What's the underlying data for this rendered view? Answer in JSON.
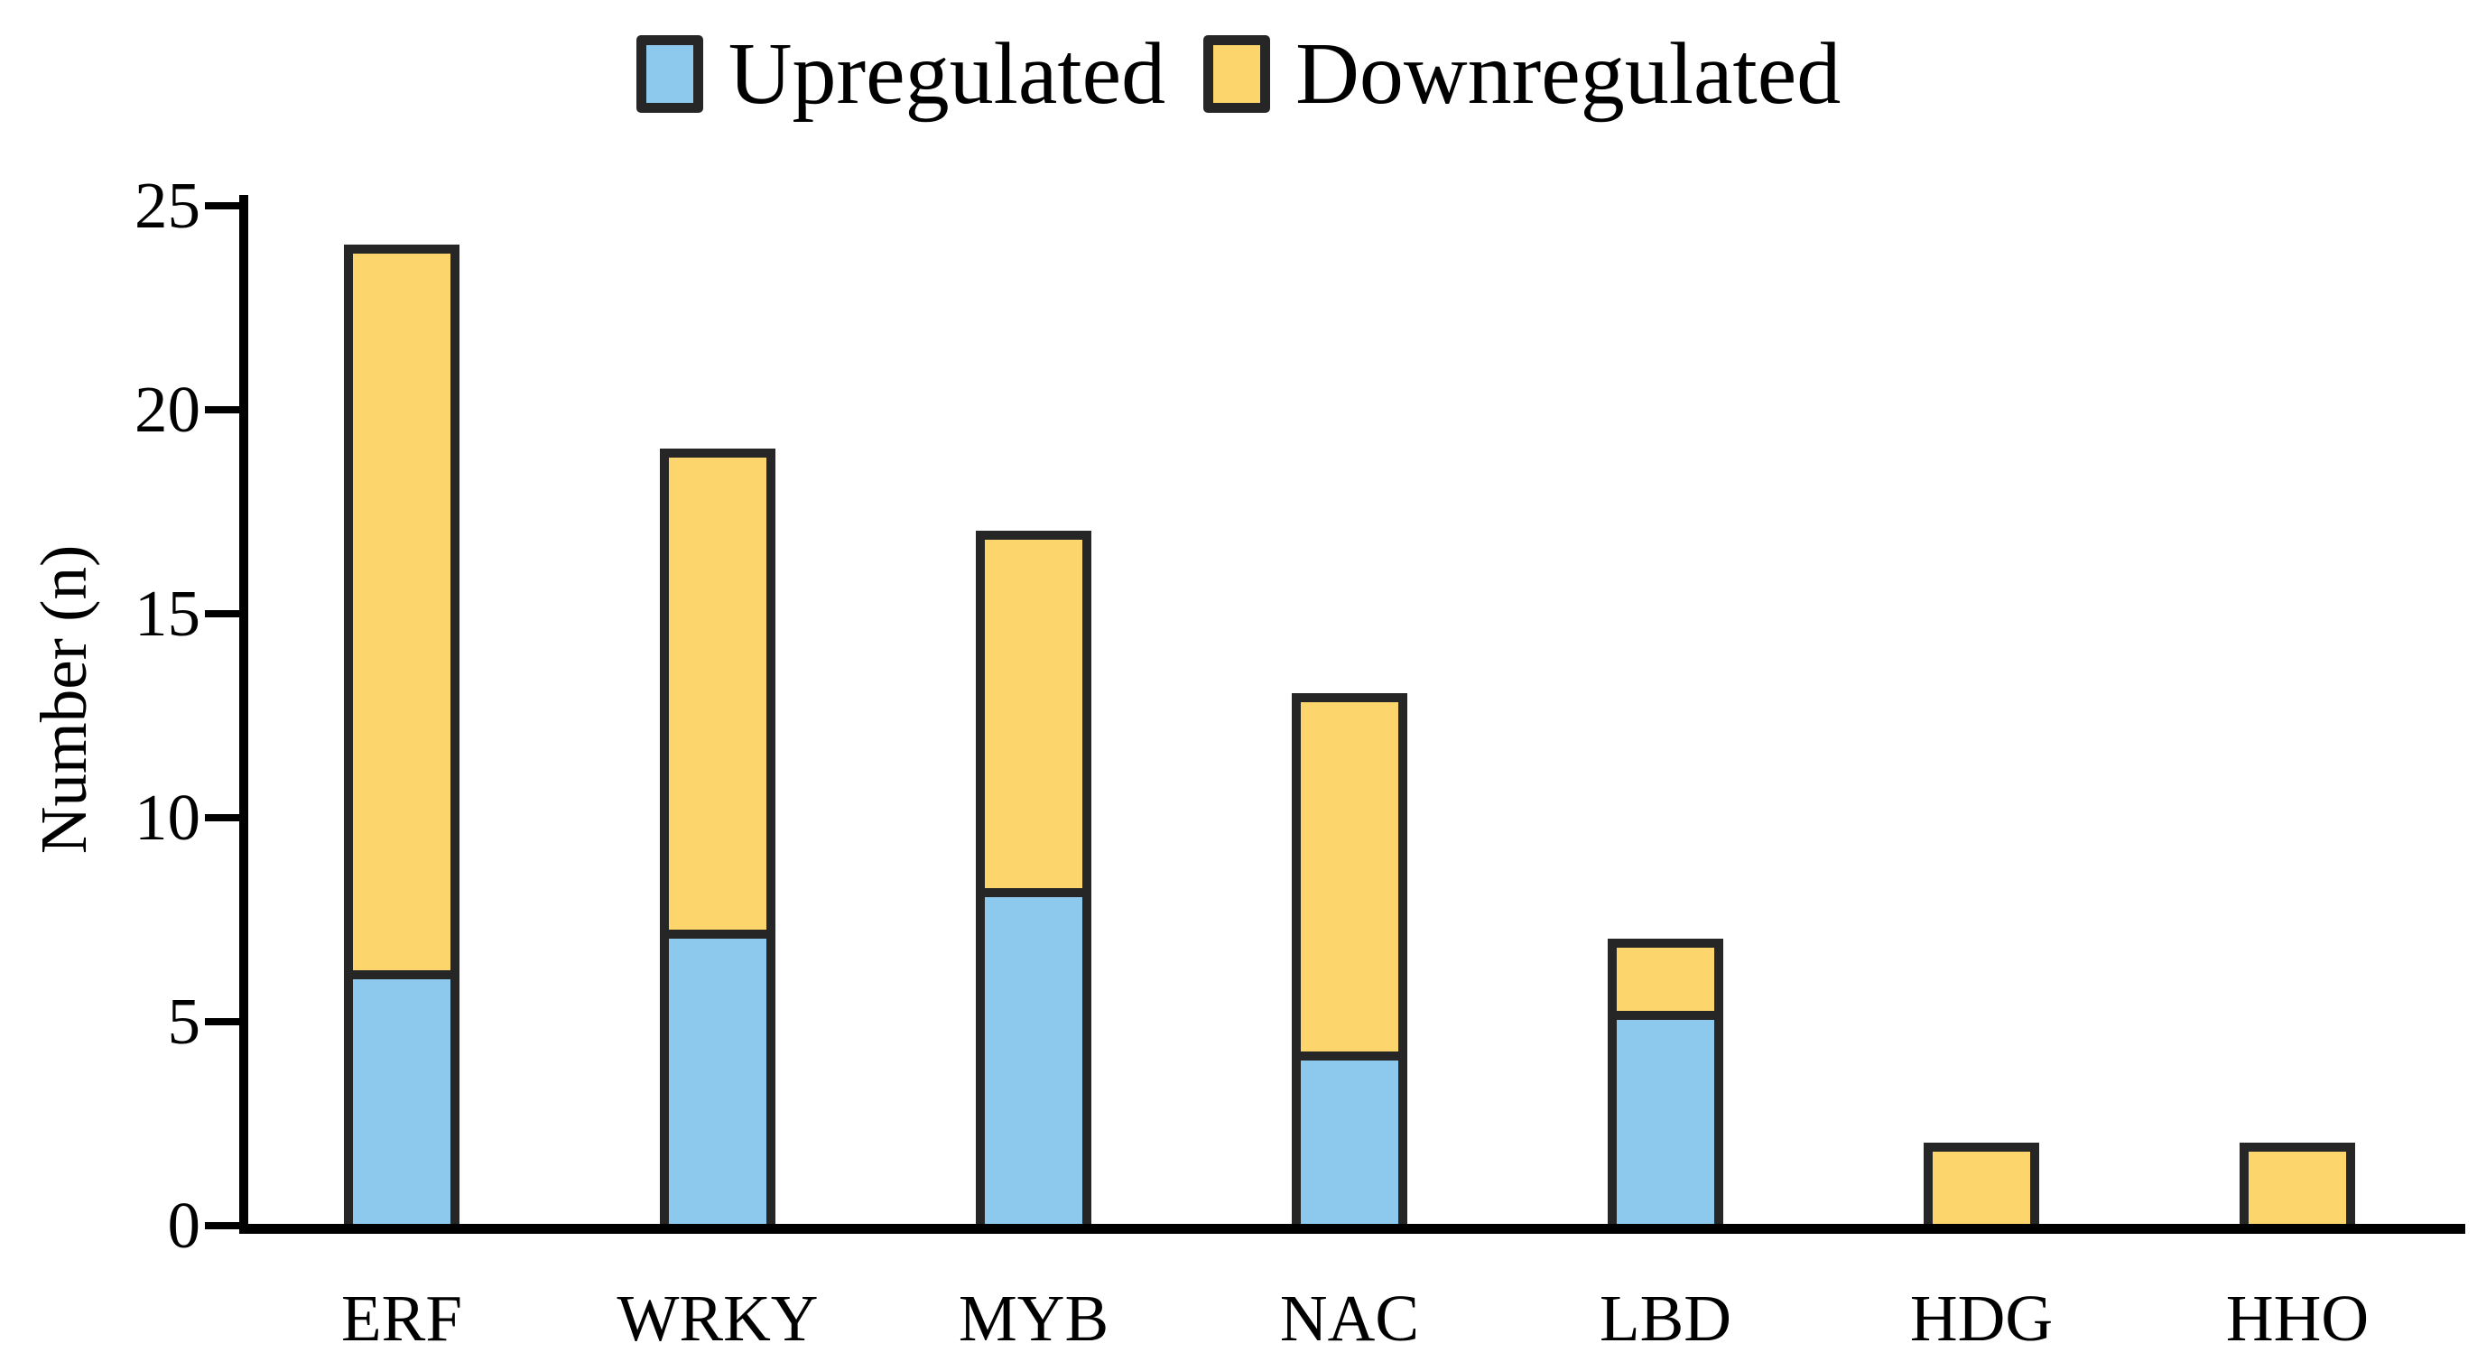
{
  "legend": {
    "items": [
      {
        "label": "Upregulated",
        "color": "#8DC8ED"
      },
      {
        "label": "Downregulated",
        "color": "#FCD56D"
      }
    ]
  },
  "chart_data": {
    "type": "bar",
    "stacked": true,
    "title": "",
    "categories": [
      "ERF",
      "WRKY",
      "MYB",
      "NAC",
      "LBD",
      "HDG",
      "HHO"
    ],
    "series": [
      {
        "name": "Upregulated",
        "color": "#8DC8ED",
        "values": [
          6,
          7,
          8,
          4,
          5,
          0,
          0
        ]
      },
      {
        "name": "Downregulated",
        "color": "#FCD56D",
        "values": [
          18,
          12,
          9,
          9,
          2,
          2,
          2
        ]
      }
    ],
    "totals": [
      24,
      19,
      17,
      13,
      7,
      2,
      2
    ],
    "xlabel": "",
    "ylabel": "Number (n)",
    "ylim": [
      0,
      25
    ],
    "yticks": [
      0,
      5,
      10,
      15,
      20,
      25
    ],
    "legend_position": "top",
    "grid": false,
    "bar_border_color": "#262626",
    "axis_color": "#000000",
    "text_color": "#000000"
  }
}
